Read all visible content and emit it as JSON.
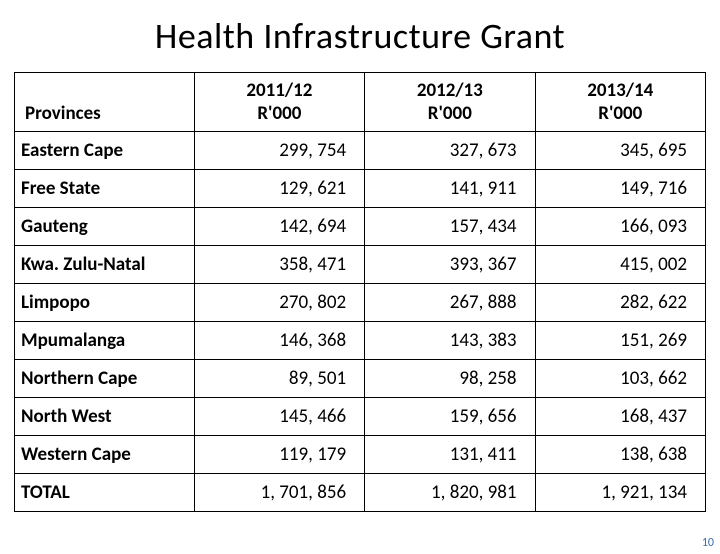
{
  "title": "Health  Infrastructure  Grant",
  "page_number": "10",
  "table": {
    "header_province": "Provinces",
    "columns": [
      "2011/12\nR'000",
      "2012/13\nR'000",
      "2013/14\nR'000"
    ],
    "rows": [
      {
        "province": "Eastern Cape",
        "v": [
          "299, 754",
          "327, 673",
          "345, 695"
        ]
      },
      {
        "province": "Free State",
        "v": [
          "129, 621",
          "141, 911",
          "149, 716"
        ]
      },
      {
        "province": "Gauteng",
        "v": [
          "142, 694",
          "157, 434",
          "166, 093"
        ]
      },
      {
        "province": "Kwa. Zulu-Natal",
        "v": [
          "358, 471",
          "393, 367",
          "415, 002"
        ]
      },
      {
        "province": "Limpopo",
        "v": [
          "270, 802",
          "267, 888",
          "282, 622"
        ]
      },
      {
        "province": "Mpumalanga",
        "v": [
          "146, 368",
          "143, 383",
          "151, 269"
        ]
      },
      {
        "province": "Northern Cape",
        "v": [
          "89, 501",
          "98, 258",
          "103, 662"
        ]
      },
      {
        "province": "North West",
        "v": [
          "145, 466",
          "159, 656",
          "168, 437"
        ]
      },
      {
        "province": "Western Cape",
        "v": [
          "119, 179",
          "131, 411",
          "138, 638"
        ]
      },
      {
        "province": "TOTAL",
        "v": [
          "1, 701, 856",
          "1, 820, 981",
          "1, 921, 134"
        ]
      }
    ]
  }
}
